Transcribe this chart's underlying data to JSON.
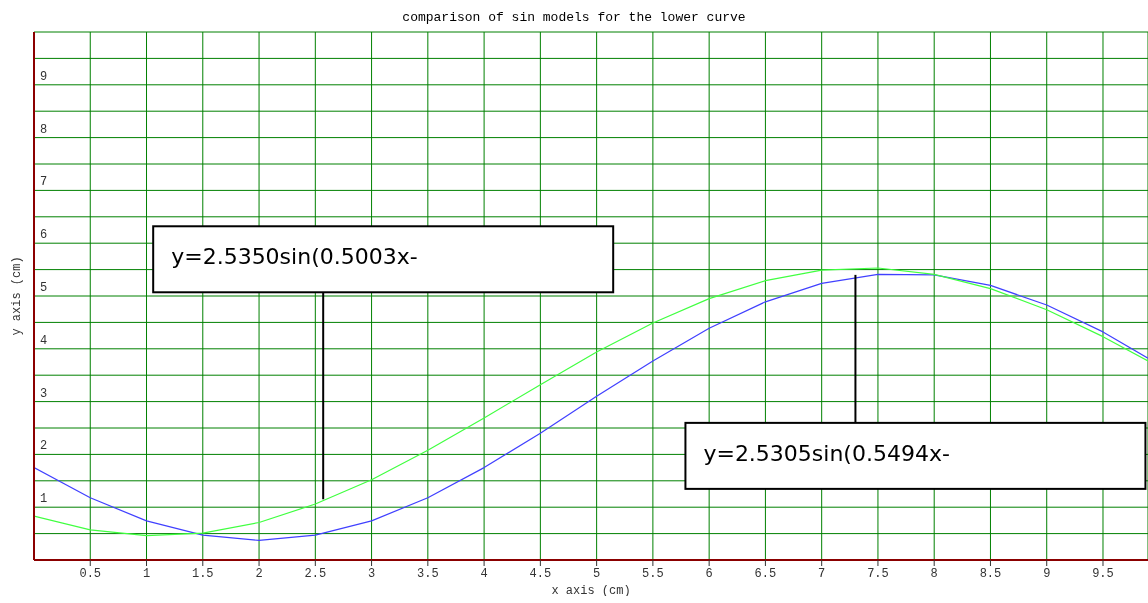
{
  "chart_data": {
    "type": "line",
    "title": "comparison of sin models for the lower curve",
    "xlabel": "x axis (cm)",
    "ylabel": "y axis (cm)",
    "x": [
      0,
      0.5,
      1,
      1.5,
      2,
      2.5,
      3,
      3.5,
      4,
      4.5,
      5,
      5.5,
      6,
      6.5,
      7,
      7.5,
      8,
      8.5,
      9,
      9.5,
      9.9
    ],
    "series": [
      {
        "color": "#4040ff",
        "values": [
          1.75,
          1.18,
          0.74,
          0.47,
          0.37,
          0.47,
          0.74,
          1.18,
          1.75,
          2.4,
          3.1,
          3.77,
          4.39,
          4.89,
          5.24,
          5.41,
          5.4,
          5.2,
          4.83,
          4.32,
          3.82
        ]
      },
      {
        "color": "#40ff40",
        "values": [
          0.83,
          0.57,
          0.46,
          0.51,
          0.71,
          1.06,
          1.52,
          2.08,
          2.69,
          3.32,
          3.94,
          4.49,
          4.95,
          5.29,
          5.49,
          5.53,
          5.41,
          5.14,
          4.74,
          4.23,
          3.77
        ]
      }
    ],
    "xlim": [
      0,
      9.9
    ],
    "ylim": [
      0,
      10
    ],
    "xticks": [
      0.5,
      1,
      1.5,
      2,
      2.5,
      3,
      3.5,
      4,
      4.5,
      5,
      5.5,
      6,
      6.5,
      7,
      7.5,
      8,
      8.5,
      9,
      9.5
    ],
    "yticks": [
      {
        "value": 0.5,
        "label": null
      },
      1,
      {
        "value": 1.5,
        "label": null
      },
      2,
      {
        "value": 2.5,
        "label": null
      },
      3,
      {
        "value": 3.5,
        "label": null
      },
      4,
      {
        "value": 4.5,
        "label": null
      },
      5,
      {
        "value": 5.5,
        "label": null
      },
      6,
      {
        "value": 6.5,
        "label": null
      },
      7,
      {
        "value": 7.5,
        "label": null
      },
      8,
      {
        "value": 8.5,
        "label": null
      },
      9,
      {
        "value": 9.5,
        "label": null
      }
    ],
    "grid": true,
    "annotations": [
      {
        "text": "y=2.5350sin(0.5003x-",
        "x": 2.57,
        "y": 1.15
      },
      {
        "text": "y=2.5305sin(0.5494x-",
        "x": 7.3,
        "y": 5.4
      }
    ]
  }
}
